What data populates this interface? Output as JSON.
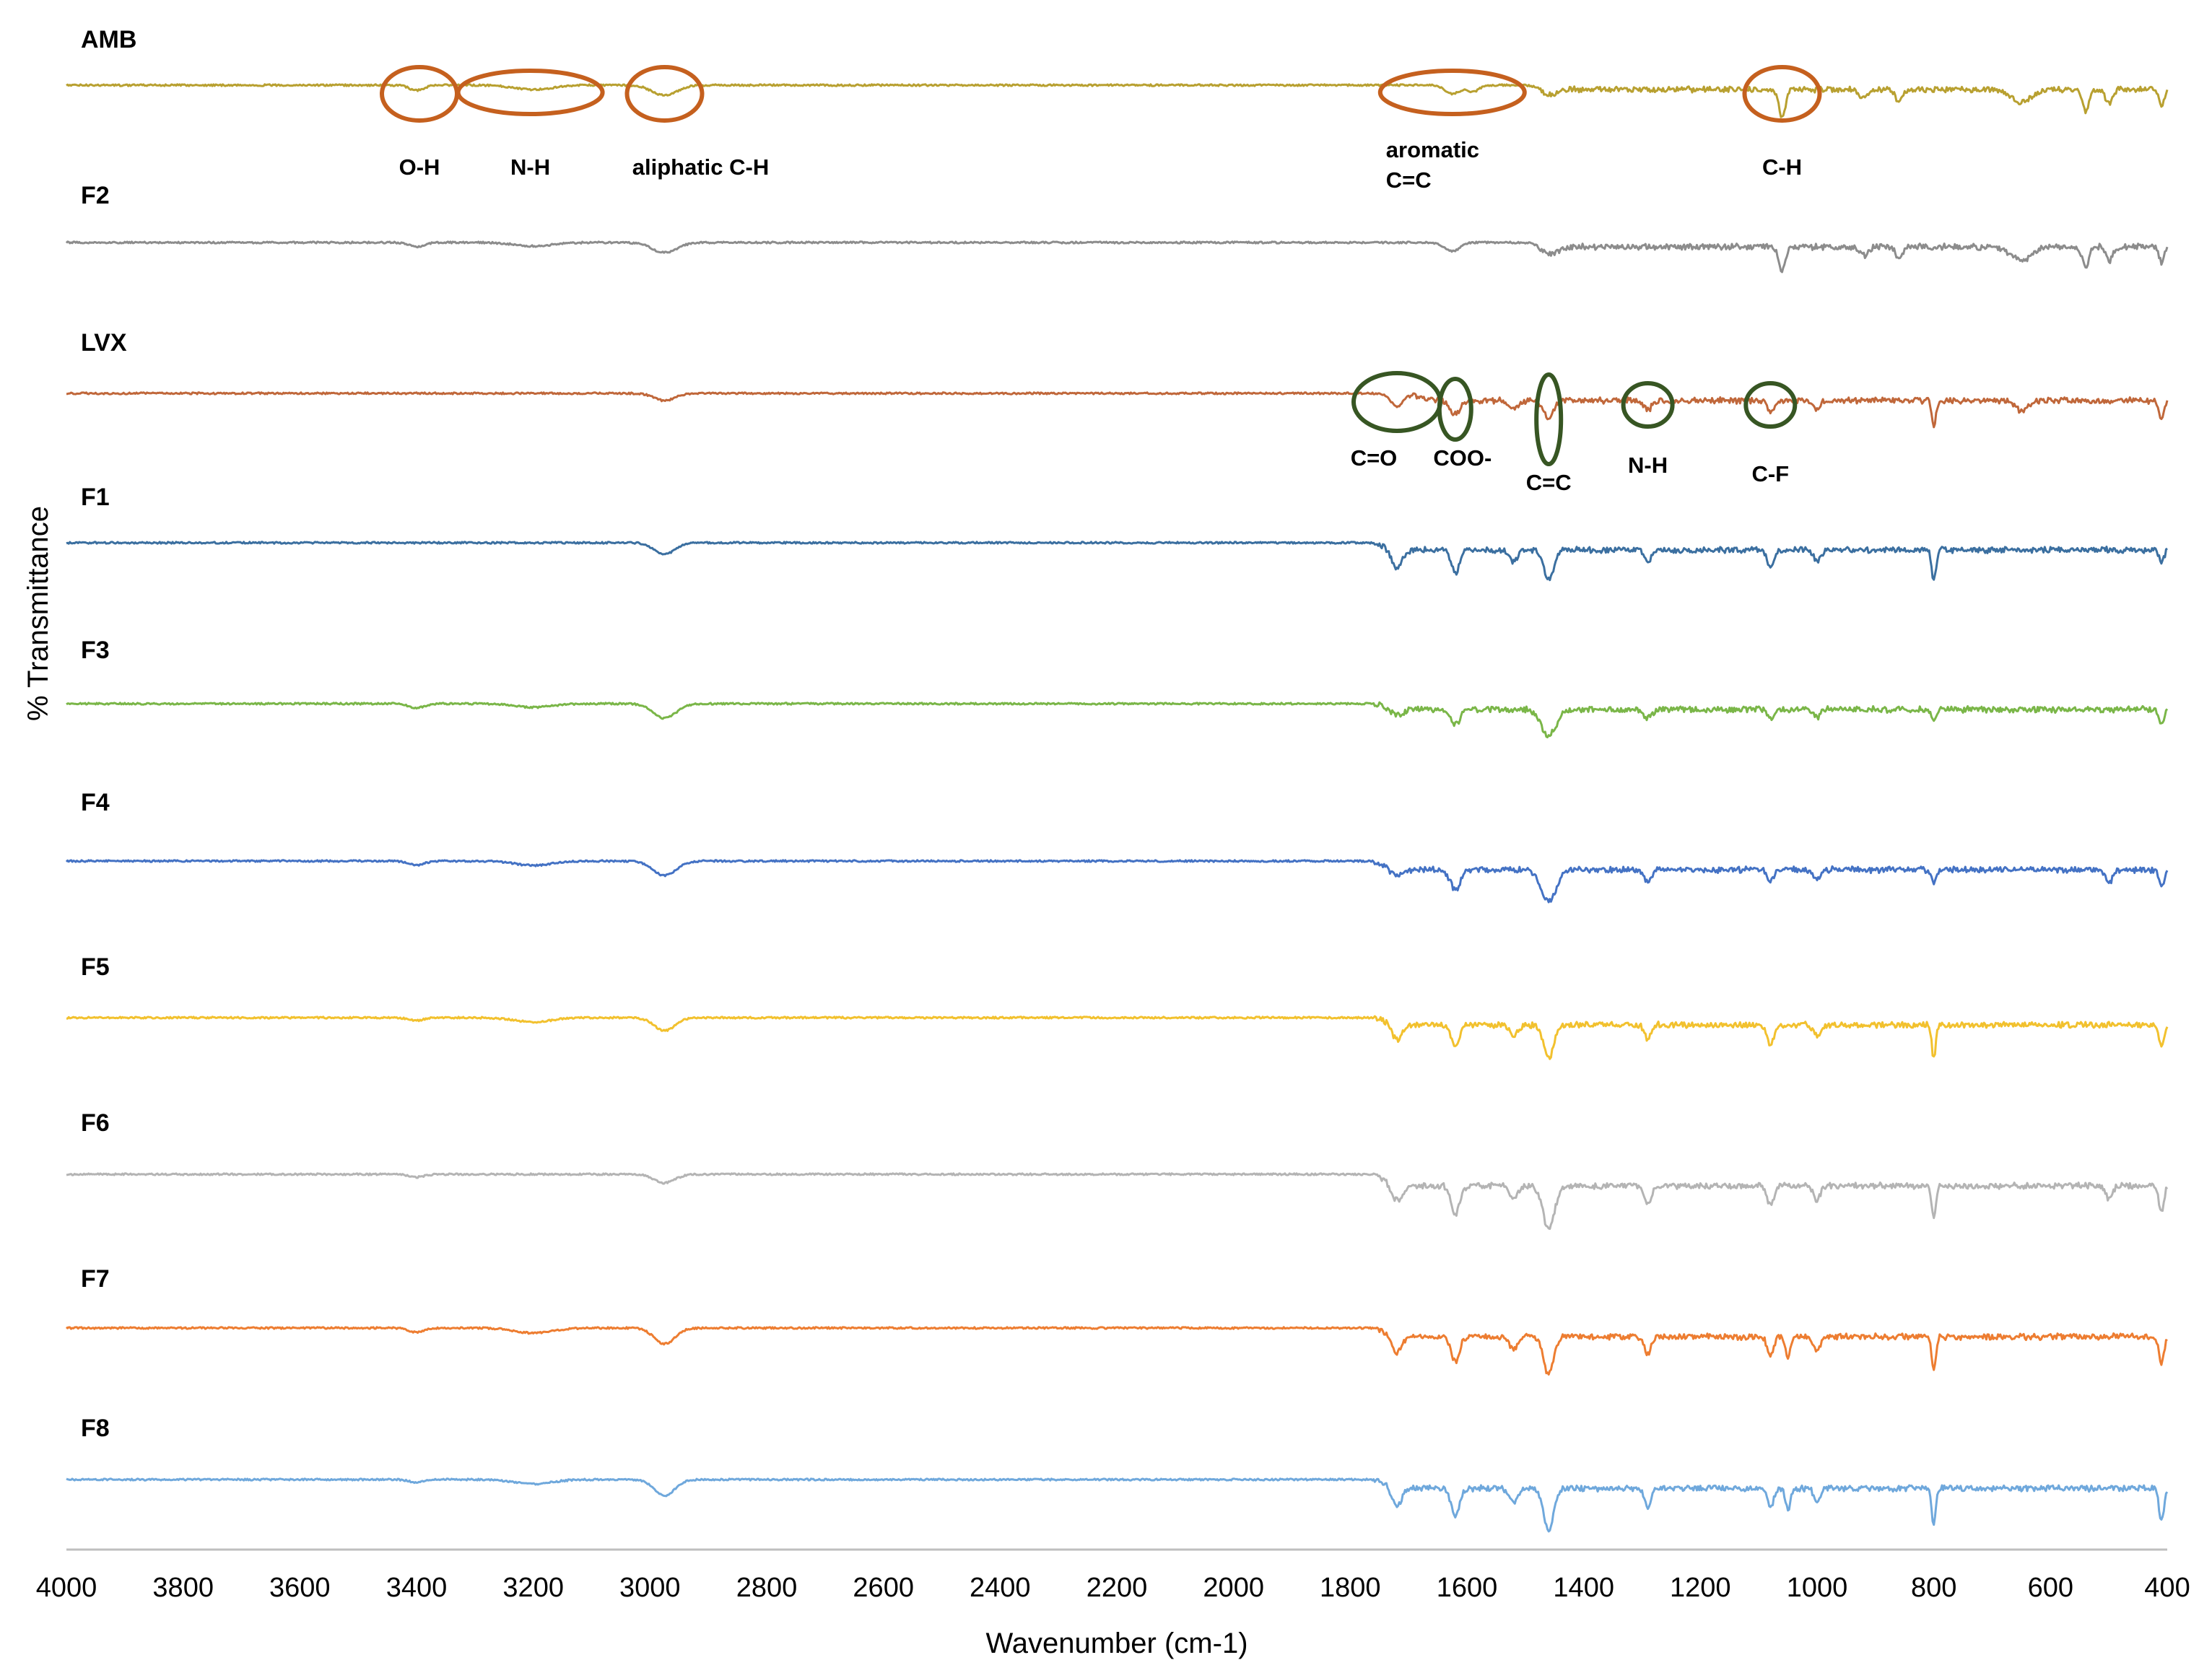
{
  "chart_data": {
    "type": "line",
    "title": "",
    "xlabel": "Wavenumber (cm-1)",
    "ylabel": "% Transmittance",
    "xlim": [
      4000,
      400
    ],
    "x_reversed": true,
    "xticks": [
      4000,
      3800,
      3600,
      3400,
      3200,
      3000,
      2800,
      2600,
      2400,
      2200,
      2000,
      1800,
      1600,
      1400,
      1200,
      1000,
      800,
      600,
      400
    ],
    "y_tick_labels": false,
    "grid": false,
    "legend": "inline-labels-left",
    "series": [
      {
        "name": "AMB",
        "color": "#b8a030",
        "baseline_region_end": 1480,
        "fingerprint_shift": 0.3,
        "peaks": [
          {
            "wn": 3400,
            "depth": 0.35,
            "width": 18
          },
          {
            "wn": 3200,
            "depth": 0.3,
            "width": 45
          },
          {
            "wn": 2975,
            "depth": 0.7,
            "width": 30
          },
          {
            "wn": 1625,
            "depth": 0.6,
            "width": 18
          },
          {
            "wn": 1590,
            "depth": 0.45,
            "width": 15
          },
          {
            "wn": 1460,
            "depth": 0.55,
            "width": 20
          },
          {
            "wn": 1060,
            "depth": 2.0,
            "width": 8
          },
          {
            "wn": 920,
            "depth": 0.6,
            "width": 10
          },
          {
            "wn": 860,
            "depth": 0.9,
            "width": 8
          },
          {
            "wn": 650,
            "depth": 0.9,
            "width": 25
          },
          {
            "wn": 540,
            "depth": 1.5,
            "width": 8
          },
          {
            "wn": 500,
            "depth": 1.0,
            "width": 8
          },
          {
            "wn": 410,
            "depth": 1.2,
            "width": 6
          }
        ]
      },
      {
        "name": "F2",
        "color": "#8c8c8c",
        "baseline_region_end": 1480,
        "fingerprint_shift": 0.3,
        "peaks": [
          {
            "wn": 3400,
            "depth": 0.3,
            "width": 18
          },
          {
            "wn": 3200,
            "depth": 0.25,
            "width": 45
          },
          {
            "wn": 2975,
            "depth": 0.7,
            "width": 30
          },
          {
            "wn": 1625,
            "depth": 0.6,
            "width": 18
          },
          {
            "wn": 1460,
            "depth": 0.6,
            "width": 20
          },
          {
            "wn": 1060,
            "depth": 1.7,
            "width": 8
          },
          {
            "wn": 920,
            "depth": 0.6,
            "width": 10
          },
          {
            "wn": 860,
            "depth": 0.8,
            "width": 8
          },
          {
            "wn": 650,
            "depth": 0.9,
            "width": 25
          },
          {
            "wn": 540,
            "depth": 1.4,
            "width": 8
          },
          {
            "wn": 500,
            "depth": 1.0,
            "width": 8
          },
          {
            "wn": 410,
            "depth": 1.1,
            "width": 6
          }
        ]
      },
      {
        "name": "LVX",
        "color": "#c0673a",
        "baseline_region_end": 1700,
        "fingerprint_shift": 0.5,
        "peaks": [
          {
            "wn": 2975,
            "depth": 0.5,
            "width": 25
          },
          {
            "wn": 1720,
            "depth": 0.9,
            "width": 15
          },
          {
            "wn": 1620,
            "depth": 0.9,
            "width": 12
          },
          {
            "wn": 1520,
            "depth": 0.6,
            "width": 10
          },
          {
            "wn": 1460,
            "depth": 1.2,
            "width": 12
          },
          {
            "wn": 1290,
            "depth": 0.6,
            "width": 10
          },
          {
            "wn": 1080,
            "depth": 0.8,
            "width": 8
          },
          {
            "wn": 1000,
            "depth": 0.6,
            "width": 8
          },
          {
            "wn": 800,
            "depth": 1.8,
            "width": 5
          },
          {
            "wn": 650,
            "depth": 0.7,
            "width": 15
          },
          {
            "wn": 410,
            "depth": 1.2,
            "width": 6
          }
        ]
      },
      {
        "name": "F1",
        "color": "#3b6fa0",
        "baseline_region_end": 1760,
        "fingerprint_shift": 0.5,
        "peaks": [
          {
            "wn": 2975,
            "depth": 0.8,
            "width": 25
          },
          {
            "wn": 1720,
            "depth": 1.3,
            "width": 12
          },
          {
            "wn": 1620,
            "depth": 1.6,
            "width": 10
          },
          {
            "wn": 1520,
            "depth": 0.8,
            "width": 10
          },
          {
            "wn": 1460,
            "depth": 2.0,
            "width": 12
          },
          {
            "wn": 1290,
            "depth": 0.9,
            "width": 8
          },
          {
            "wn": 1080,
            "depth": 1.2,
            "width": 8
          },
          {
            "wn": 1000,
            "depth": 0.8,
            "width": 8
          },
          {
            "wn": 800,
            "depth": 2.2,
            "width": 5
          },
          {
            "wn": 410,
            "depth": 0.8,
            "width": 6
          }
        ]
      },
      {
        "name": "F3",
        "color": "#7ab648",
        "baseline_region_end": 1760,
        "fingerprint_shift": 0.4,
        "peaks": [
          {
            "wn": 3400,
            "depth": 0.3,
            "width": 18
          },
          {
            "wn": 3200,
            "depth": 0.25,
            "width": 45
          },
          {
            "wn": 2975,
            "depth": 1.0,
            "width": 28
          },
          {
            "wn": 1720,
            "depth": 0.4,
            "width": 15
          },
          {
            "wn": 1620,
            "depth": 1.0,
            "width": 12
          },
          {
            "wn": 1460,
            "depth": 1.8,
            "width": 18
          },
          {
            "wn": 1290,
            "depth": 0.6,
            "width": 10
          },
          {
            "wn": 1080,
            "depth": 0.6,
            "width": 8
          },
          {
            "wn": 1000,
            "depth": 0.5,
            "width": 8
          },
          {
            "wn": 800,
            "depth": 0.8,
            "width": 6
          },
          {
            "wn": 410,
            "depth": 0.9,
            "width": 6
          }
        ]
      },
      {
        "name": "F4",
        "color": "#4472c4",
        "baseline_region_end": 1760,
        "fingerprint_shift": 0.6,
        "peaks": [
          {
            "wn": 3400,
            "depth": 0.3,
            "width": 18
          },
          {
            "wn": 3200,
            "depth": 0.3,
            "width": 45
          },
          {
            "wn": 2975,
            "depth": 1.0,
            "width": 28
          },
          {
            "wn": 1720,
            "depth": 0.5,
            "width": 15
          },
          {
            "wn": 1620,
            "depth": 1.4,
            "width": 12
          },
          {
            "wn": 1460,
            "depth": 2.2,
            "width": 18
          },
          {
            "wn": 1290,
            "depth": 0.8,
            "width": 10
          },
          {
            "wn": 1080,
            "depth": 0.8,
            "width": 8
          },
          {
            "wn": 1000,
            "depth": 0.7,
            "width": 8
          },
          {
            "wn": 800,
            "depth": 0.9,
            "width": 6
          },
          {
            "wn": 500,
            "depth": 0.9,
            "width": 8
          },
          {
            "wn": 410,
            "depth": 1.3,
            "width": 6
          }
        ]
      },
      {
        "name": "F5",
        "color": "#f2c12e",
        "baseline_region_end": 1760,
        "fingerprint_shift": 0.5,
        "peaks": [
          {
            "wn": 3400,
            "depth": 0.2,
            "width": 18
          },
          {
            "wn": 3200,
            "depth": 0.3,
            "width": 45
          },
          {
            "wn": 2975,
            "depth": 0.9,
            "width": 25
          },
          {
            "wn": 1720,
            "depth": 1.1,
            "width": 12
          },
          {
            "wn": 1620,
            "depth": 1.5,
            "width": 10
          },
          {
            "wn": 1520,
            "depth": 0.8,
            "width": 10
          },
          {
            "wn": 1460,
            "depth": 2.3,
            "width": 12
          },
          {
            "wn": 1290,
            "depth": 1.0,
            "width": 8
          },
          {
            "wn": 1080,
            "depth": 1.4,
            "width": 8
          },
          {
            "wn": 1000,
            "depth": 0.8,
            "width": 8
          },
          {
            "wn": 800,
            "depth": 2.3,
            "width": 5
          },
          {
            "wn": 410,
            "depth": 1.5,
            "width": 6
          }
        ]
      },
      {
        "name": "F6",
        "color": "#b4b4b4",
        "baseline_region_end": 1760,
        "fingerprint_shift": 0.8,
        "peaks": [
          {
            "wn": 3400,
            "depth": 0.2,
            "width": 18
          },
          {
            "wn": 2975,
            "depth": 0.6,
            "width": 25
          },
          {
            "wn": 1720,
            "depth": 1.1,
            "width": 12
          },
          {
            "wn": 1620,
            "depth": 2.0,
            "width": 10
          },
          {
            "wn": 1520,
            "depth": 0.9,
            "width": 10
          },
          {
            "wn": 1460,
            "depth": 3.0,
            "width": 14
          },
          {
            "wn": 1290,
            "depth": 1.3,
            "width": 8
          },
          {
            "wn": 1080,
            "depth": 1.3,
            "width": 8
          },
          {
            "wn": 1000,
            "depth": 1.0,
            "width": 8
          },
          {
            "wn": 800,
            "depth": 2.1,
            "width": 5
          },
          {
            "wn": 500,
            "depth": 0.9,
            "width": 8
          },
          {
            "wn": 410,
            "depth": 1.8,
            "width": 6
          }
        ]
      },
      {
        "name": "F7",
        "color": "#ed7d31",
        "baseline_region_end": 1760,
        "fingerprint_shift": 0.6,
        "peaks": [
          {
            "wn": 3400,
            "depth": 0.3,
            "width": 18
          },
          {
            "wn": 3200,
            "depth": 0.35,
            "width": 45
          },
          {
            "wn": 2975,
            "depth": 1.1,
            "width": 25
          },
          {
            "wn": 1720,
            "depth": 1.1,
            "width": 12
          },
          {
            "wn": 1620,
            "depth": 1.7,
            "width": 10
          },
          {
            "wn": 1520,
            "depth": 0.9,
            "width": 10
          },
          {
            "wn": 1460,
            "depth": 2.6,
            "width": 12
          },
          {
            "wn": 1290,
            "depth": 1.2,
            "width": 8
          },
          {
            "wn": 1080,
            "depth": 1.3,
            "width": 8
          },
          {
            "wn": 1050,
            "depth": 1.5,
            "width": 6
          },
          {
            "wn": 1000,
            "depth": 0.9,
            "width": 8
          },
          {
            "wn": 800,
            "depth": 2.4,
            "width": 5
          },
          {
            "wn": 410,
            "depth": 1.9,
            "width": 6
          }
        ]
      },
      {
        "name": "F8",
        "color": "#6fa8dc",
        "baseline_region_end": 1760,
        "fingerprint_shift": 0.6,
        "peaks": [
          {
            "wn": 3400,
            "depth": 0.2,
            "width": 18
          },
          {
            "wn": 3200,
            "depth": 0.3,
            "width": 45
          },
          {
            "wn": 2975,
            "depth": 1.1,
            "width": 25
          },
          {
            "wn": 1720,
            "depth": 1.2,
            "width": 12
          },
          {
            "wn": 1620,
            "depth": 2.0,
            "width": 10
          },
          {
            "wn": 1520,
            "depth": 1.0,
            "width": 10
          },
          {
            "wn": 1460,
            "depth": 2.9,
            "width": 12
          },
          {
            "wn": 1290,
            "depth": 1.3,
            "width": 8
          },
          {
            "wn": 1080,
            "depth": 1.3,
            "width": 8
          },
          {
            "wn": 1050,
            "depth": 1.5,
            "width": 6
          },
          {
            "wn": 1000,
            "depth": 0.9,
            "width": 8
          },
          {
            "wn": 800,
            "depth": 2.5,
            "width": 5
          },
          {
            "wn": 410,
            "depth": 2.2,
            "width": 6
          }
        ]
      }
    ],
    "annotations": [
      {
        "series": "AMB",
        "label": "O-H",
        "wn": 3395,
        "shape": "circle",
        "color": "#c5601e"
      },
      {
        "series": "AMB",
        "label": "N-H",
        "wn": 3205,
        "shape": "ellipse-wide",
        "color": "#c5601e"
      },
      {
        "series": "AMB",
        "label": "aliphatic C-H",
        "wn": 2975,
        "shape": "circle",
        "color": "#c5601e"
      },
      {
        "series": "AMB",
        "label": "aromatic\nC=C",
        "wn": 1625,
        "shape": "ellipse-wide",
        "color": "#c5601e"
      },
      {
        "series": "AMB",
        "label": "C-H",
        "wn": 1060,
        "shape": "circle",
        "color": "#c5601e"
      },
      {
        "series": "LVX",
        "label": "C=O",
        "wn": 1720,
        "shape": "circle",
        "color": "#375623"
      },
      {
        "series": "LVX",
        "label": "COO-",
        "wn": 1620,
        "shape": "ellipse-tall",
        "color": "#375623"
      },
      {
        "series": "LVX",
        "label": "C=C",
        "wn": 1460,
        "shape": "ellipse-very-tall",
        "color": "#375623"
      },
      {
        "series": "LVX",
        "label": "N-H",
        "wn": 1290,
        "shape": "circle",
        "color": "#375623"
      },
      {
        "series": "LVX",
        "label": "C-F",
        "wn": 1080,
        "shape": "circle",
        "color": "#375623"
      }
    ]
  }
}
